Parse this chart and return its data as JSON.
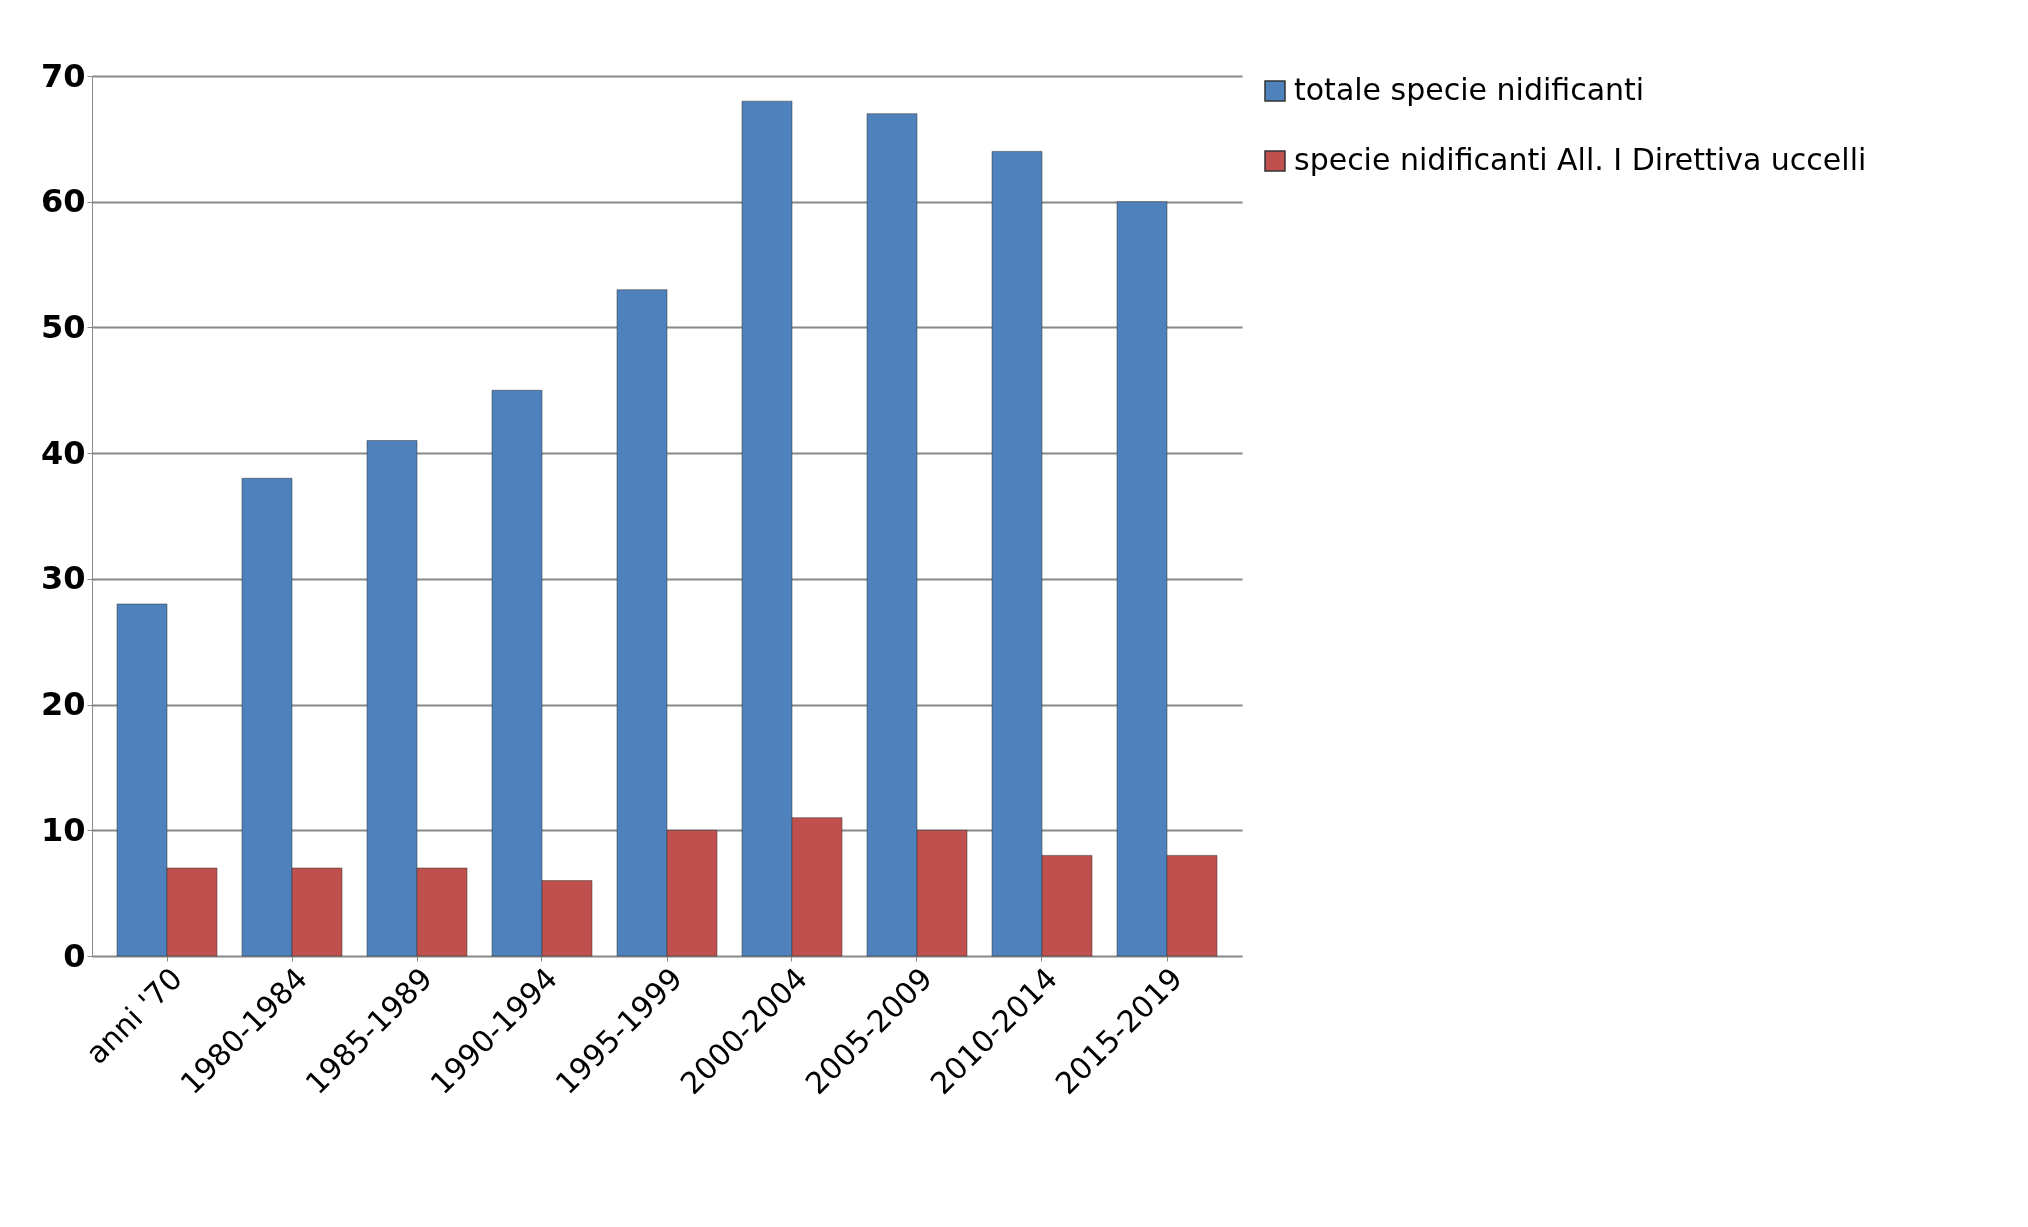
{
  "chart_data": {
    "type": "bar",
    "categories": [
      "anni '70",
      "1980-1984",
      "1985-1989",
      "1990-1994",
      "1995-1999",
      "2000-2004",
      "2005-2009",
      "2010-2014",
      "2015-2019"
    ],
    "series": [
      {
        "name": "totale specie nidificanti",
        "color": "#4f81bd",
        "values": [
          28,
          38,
          41,
          45,
          53,
          68,
          67,
          64,
          60
        ]
      },
      {
        "name": "specie nidificanti All. I Direttiva uccelli",
        "color": "#c0504d",
        "values": [
          7,
          7,
          7,
          6,
          10,
          11,
          10,
          8,
          8
        ]
      }
    ],
    "ylim": [
      0,
      70
    ],
    "yticks": [
      0,
      10,
      20,
      30,
      40,
      50,
      60,
      70
    ],
    "grid": "y",
    "legend": "right"
  }
}
